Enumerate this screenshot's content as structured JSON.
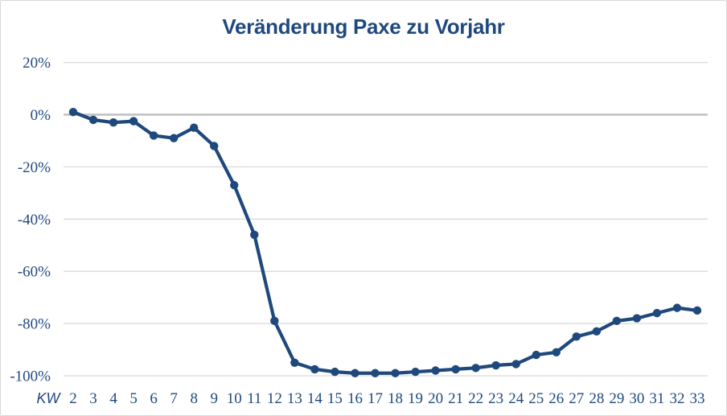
{
  "chart_data": {
    "type": "line",
    "title": "Veränderung Paxe zu Vorjahr",
    "xlabel": "KW",
    "ylabel": "",
    "categories": [
      2,
      3,
      4,
      5,
      6,
      7,
      8,
      9,
      10,
      11,
      12,
      13,
      14,
      15,
      16,
      17,
      18,
      19,
      20,
      21,
      22,
      23,
      24,
      25,
      26,
      27,
      28,
      29,
      30,
      31,
      32,
      33
    ],
    "values": [
      1,
      -2,
      -3,
      -2.5,
      -8,
      -9,
      -5,
      -12,
      -27,
      -46,
      -79,
      -95,
      -97.5,
      -98.5,
      -99,
      -99,
      -99,
      -98.5,
      -98,
      -97.5,
      -97,
      -96,
      -95.5,
      -92,
      -91,
      -85,
      -83,
      -79,
      -78,
      -76,
      -74,
      -75
    ],
    "value_suffix": "%",
    "ylim": [
      -100,
      20
    ],
    "yticks": [
      20,
      0,
      -20,
      -40,
      -60,
      -80,
      -100
    ],
    "grid": true,
    "legend": "none",
    "marker": "circle",
    "colors": {
      "line": "#1F497D",
      "marker": "#1F497D",
      "title_text": "#1F497D",
      "tick_text": "#1F497D",
      "gridline": "#D9D9D9",
      "zero_axis_line": "#BFBFBF",
      "frame_border": "#D9D9D9",
      "background": "#FFFFFF"
    }
  }
}
